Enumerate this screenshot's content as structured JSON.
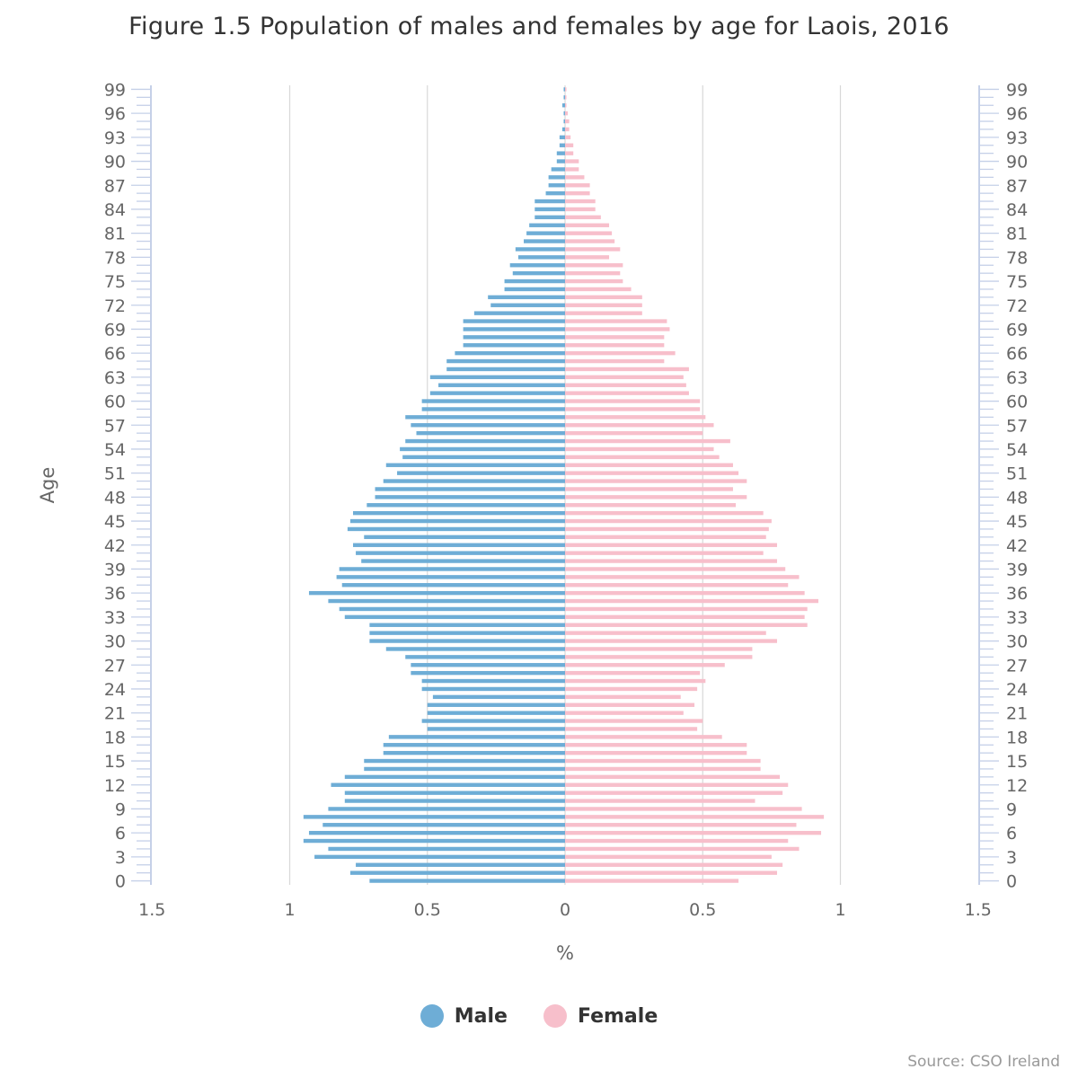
{
  "title": "Figure 1.5 Population of males and females by age for Laois, 2016",
  "source": "Source: CSO Ireland",
  "colors": {
    "male": "#6eadd6",
    "female": "#f7bfcb",
    "grid": "#d8d8d8",
    "axis": "#c5d0e8"
  },
  "legend": [
    {
      "label": "Male",
      "color": "#6eadd6"
    },
    {
      "label": "Female",
      "color": "#f7bfcb"
    }
  ],
  "chart_data": {
    "type": "bar",
    "orientation": "horizontal",
    "title": "Figure 1.5 Population of males and females by age for Laois, 2016",
    "xlabel": "%",
    "ylabel": "Age",
    "xlim": [
      -1.5,
      1.5
    ],
    "x_ticks": [
      -1.5,
      -1,
      -0.5,
      0,
      0.5,
      1,
      1.5
    ],
    "x_tick_labels": [
      "1.5",
      "1",
      "0.5",
      "0",
      "0.5",
      "1",
      "1.5"
    ],
    "y_ticks": [
      0,
      3,
      6,
      9,
      12,
      15,
      18,
      21,
      24,
      27,
      30,
      33,
      36,
      39,
      42,
      45,
      48,
      51,
      54,
      57,
      60,
      63,
      66,
      69,
      72,
      75,
      78,
      81,
      84,
      87,
      90,
      93,
      96,
      99
    ],
    "grid": true,
    "legend_position": "bottom-center",
    "categories": [
      0,
      1,
      2,
      3,
      4,
      5,
      6,
      7,
      8,
      9,
      10,
      11,
      12,
      13,
      14,
      15,
      16,
      17,
      18,
      19,
      20,
      21,
      22,
      23,
      24,
      25,
      26,
      27,
      28,
      29,
      30,
      31,
      32,
      33,
      34,
      35,
      36,
      37,
      38,
      39,
      40,
      41,
      42,
      43,
      44,
      45,
      46,
      47,
      48,
      49,
      50,
      51,
      52,
      53,
      54,
      55,
      56,
      57,
      58,
      59,
      60,
      61,
      62,
      63,
      64,
      65,
      66,
      67,
      68,
      69,
      70,
      71,
      72,
      73,
      74,
      75,
      76,
      77,
      78,
      79,
      80,
      81,
      82,
      83,
      84,
      85,
      86,
      87,
      88,
      89,
      90,
      91,
      92,
      93,
      94,
      95,
      96,
      97,
      98,
      99
    ],
    "series": [
      {
        "name": "Male",
        "values": [
          0.71,
          0.78,
          0.76,
          0.91,
          0.86,
          0.95,
          0.93,
          0.88,
          0.95,
          0.86,
          0.8,
          0.8,
          0.85,
          0.8,
          0.73,
          0.73,
          0.66,
          0.66,
          0.64,
          0.5,
          0.52,
          0.5,
          0.5,
          0.48,
          0.52,
          0.52,
          0.56,
          0.56,
          0.58,
          0.65,
          0.71,
          0.71,
          0.71,
          0.8,
          0.82,
          0.86,
          0.93,
          0.81,
          0.83,
          0.82,
          0.74,
          0.76,
          0.77,
          0.73,
          0.79,
          0.78,
          0.77,
          0.72,
          0.69,
          0.69,
          0.66,
          0.61,
          0.65,
          0.59,
          0.6,
          0.58,
          0.54,
          0.56,
          0.58,
          0.52,
          0.52,
          0.49,
          0.46,
          0.49,
          0.43,
          0.43,
          0.4,
          0.37,
          0.37,
          0.37,
          0.37,
          0.33,
          0.27,
          0.28,
          0.22,
          0.22,
          0.19,
          0.2,
          0.17,
          0.18,
          0.15,
          0.14,
          0.13,
          0.11,
          0.11,
          0.11,
          0.07,
          0.06,
          0.06,
          0.05,
          0.03,
          0.03,
          0.02,
          0.02,
          0.01,
          0.005,
          0.005,
          0.01,
          0.005,
          0.005
        ]
      },
      {
        "name": "Female",
        "values": [
          0.63,
          0.77,
          0.79,
          0.75,
          0.85,
          0.81,
          0.93,
          0.84,
          0.94,
          0.86,
          0.69,
          0.79,
          0.81,
          0.78,
          0.71,
          0.71,
          0.66,
          0.66,
          0.57,
          0.48,
          0.5,
          0.43,
          0.47,
          0.42,
          0.48,
          0.51,
          0.49,
          0.58,
          0.68,
          0.68,
          0.77,
          0.73,
          0.88,
          0.87,
          0.88,
          0.92,
          0.87,
          0.81,
          0.85,
          0.8,
          0.77,
          0.72,
          0.77,
          0.73,
          0.74,
          0.75,
          0.72,
          0.62,
          0.66,
          0.61,
          0.66,
          0.63,
          0.61,
          0.56,
          0.54,
          0.6,
          0.5,
          0.54,
          0.51,
          0.49,
          0.49,
          0.45,
          0.44,
          0.43,
          0.45,
          0.36,
          0.4,
          0.36,
          0.36,
          0.38,
          0.37,
          0.28,
          0.28,
          0.28,
          0.24,
          0.21,
          0.2,
          0.21,
          0.16,
          0.2,
          0.18,
          0.17,
          0.16,
          0.13,
          0.11,
          0.11,
          0.09,
          0.09,
          0.07,
          0.05,
          0.05,
          0.03,
          0.03,
          0.02,
          0.015,
          0.015,
          0.01,
          0.005,
          0.005,
          0.005
        ]
      }
    ]
  }
}
